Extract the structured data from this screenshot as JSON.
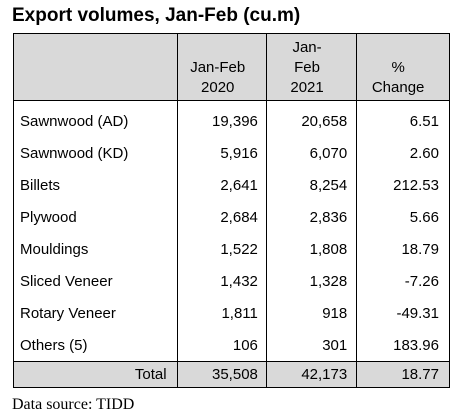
{
  "title": "Export volumes, Jan-Feb (cu.m)",
  "columns": [
    "",
    "Jan-Feb\n2020",
    "Jan-\nFeb\n2021",
    "%\nChange"
  ],
  "rows": [
    {
      "label": "Sawnwood (AD)",
      "v2020": "19,396",
      "v2021": "20,658",
      "change": "6.51"
    },
    {
      "label": "Sawnwood (KD)",
      "v2020": "5,916",
      "v2021": "6,070",
      "change": "2.60"
    },
    {
      "label": "Billets",
      "v2020": "2,641",
      "v2021": "8,254",
      "change": "212.53"
    },
    {
      "label": "Plywood",
      "v2020": "2,684",
      "v2021": "2,836",
      "change": "5.66"
    },
    {
      "label": "Mouldings",
      "v2020": "1,522",
      "v2021": "1,808",
      "change": "18.79"
    },
    {
      "label": "Sliced Veneer",
      "v2020": "1,432",
      "v2021": "1,328",
      "change": "-7.26"
    },
    {
      "label": "Rotary Veneer",
      "v2020": "1,811",
      "v2021": "918",
      "change": "-49.31"
    },
    {
      "label": "Others (5)",
      "v2020": "106",
      "v2021": "301",
      "change": "183.96"
    }
  ],
  "total": {
    "label": "Total",
    "v2020": "35,508",
    "v2021": "42,173",
    "change": "18.77"
  },
  "source": "Data source: TIDD"
}
